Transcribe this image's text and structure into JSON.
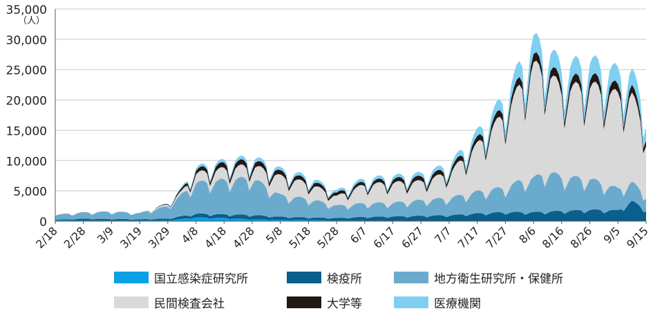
{
  "chart_data": {
    "type": "area",
    "stacked": true,
    "y_unit": "（人）",
    "ylim": [
      0,
      35000
    ],
    "y_ticks": [
      "0",
      "5,000",
      "10,000",
      "15,000",
      "20,000",
      "25,000",
      "30,000",
      "35,000"
    ],
    "x_ticks": [
      "2/18",
      "2/28",
      "3/9",
      "3/19",
      "3/29",
      "4/8",
      "4/18",
      "4/28",
      "5/8",
      "5/18",
      "5/28",
      "6/7",
      "6/17",
      "6/27",
      "7/7",
      "7/17",
      "7/27",
      "8/6",
      "8/16",
      "8/26",
      "9/5",
      "9/15"
    ],
    "grid": true,
    "legend_position": "bottom",
    "series": [
      {
        "name": "国立感染症研究所",
        "color": "#0aa0e6",
        "values": [
          [
            0,
            150
          ],
          [
            10,
            100
          ],
          [
            20,
            100
          ],
          [
            30,
            100
          ],
          [
            40,
            120
          ],
          [
            50,
            600
          ],
          [
            60,
            500
          ],
          [
            70,
            300
          ],
          [
            80,
            200
          ],
          [
            90,
            200
          ],
          [
            100,
            100
          ],
          [
            110,
            80
          ],
          [
            120,
            60
          ],
          [
            130,
            60
          ],
          [
            140,
            50
          ],
          [
            150,
            50
          ],
          [
            160,
            50
          ],
          [
            170,
            40
          ],
          [
            180,
            40
          ],
          [
            190,
            40
          ],
          [
            200,
            40
          ],
          [
            210,
            40
          ]
        ]
      },
      {
        "name": "検疫所",
        "color": "#0a5f8c",
        "values": [
          [
            0,
            100
          ],
          [
            10,
            300
          ],
          [
            20,
            250
          ],
          [
            30,
            200
          ],
          [
            40,
            300
          ],
          [
            50,
            600
          ],
          [
            60,
            600
          ],
          [
            70,
            700
          ],
          [
            80,
            500
          ],
          [
            90,
            400
          ],
          [
            100,
            400
          ],
          [
            110,
            600
          ],
          [
            120,
            700
          ],
          [
            130,
            800
          ],
          [
            140,
            900
          ],
          [
            150,
            1200
          ],
          [
            160,
            1400
          ],
          [
            170,
            1400
          ],
          [
            180,
            1600
          ],
          [
            190,
            1800
          ],
          [
            200,
            1700
          ],
          [
            205,
            3200
          ],
          [
            210,
            1800
          ]
        ]
      },
      {
        "name": "地方衛生研究所・保健所",
        "color": "#6aabcd",
        "values": [
          [
            0,
            800
          ],
          [
            10,
            1000
          ],
          [
            20,
            1200
          ],
          [
            30,
            1000
          ],
          [
            40,
            2000
          ],
          [
            45,
            3500
          ],
          [
            50,
            5000
          ],
          [
            60,
            5500
          ],
          [
            70,
            6000
          ],
          [
            80,
            3500
          ],
          [
            90,
            3000
          ],
          [
            100,
            2000
          ],
          [
            110,
            2200
          ],
          [
            120,
            2200
          ],
          [
            130,
            2500
          ],
          [
            140,
            2800
          ],
          [
            150,
            3500
          ],
          [
            160,
            4000
          ],
          [
            165,
            5000
          ],
          [
            170,
            5500
          ],
          [
            175,
            6500
          ],
          [
            180,
            5500
          ],
          [
            190,
            5000
          ],
          [
            200,
            3500
          ],
          [
            205,
            3000
          ],
          [
            210,
            2500
          ]
        ]
      },
      {
        "name": "民間検査会社",
        "color": "#d9d9d9",
        "values": [
          [
            0,
            0
          ],
          [
            10,
            0
          ],
          [
            20,
            0
          ],
          [
            30,
            0
          ],
          [
            40,
            300
          ],
          [
            45,
            500
          ],
          [
            50,
            1500
          ],
          [
            60,
            1800
          ],
          [
            70,
            2000
          ],
          [
            80,
            3000
          ],
          [
            90,
            2500
          ],
          [
            100,
            1500
          ],
          [
            110,
            3000
          ],
          [
            120,
            3200
          ],
          [
            130,
            3000
          ],
          [
            140,
            4000
          ],
          [
            150,
            7500
          ],
          [
            160,
            12000
          ],
          [
            165,
            15000
          ],
          [
            170,
            18000
          ],
          [
            175,
            16000
          ],
          [
            180,
            14000
          ],
          [
            190,
            15000
          ],
          [
            200,
            15000
          ],
          [
            205,
            14000
          ],
          [
            210,
            10000
          ]
        ]
      },
      {
        "name": "大学等",
        "color": "#231815",
        "values": [
          [
            0,
            0
          ],
          [
            10,
            0
          ],
          [
            20,
            0
          ],
          [
            30,
            0
          ],
          [
            40,
            100
          ],
          [
            50,
            600
          ],
          [
            60,
            800
          ],
          [
            70,
            800
          ],
          [
            80,
            700
          ],
          [
            90,
            600
          ],
          [
            100,
            500
          ],
          [
            110,
            500
          ],
          [
            120,
            600
          ],
          [
            130,
            700
          ],
          [
            140,
            700
          ],
          [
            150,
            900
          ],
          [
            160,
            1100
          ],
          [
            170,
            1300
          ],
          [
            180,
            1300
          ],
          [
            190,
            1300
          ],
          [
            200,
            1300
          ],
          [
            210,
            1100
          ]
        ]
      },
      {
        "name": "医療機関",
        "color": "#7fcff2",
        "values": [
          [
            0,
            0
          ],
          [
            10,
            0
          ],
          [
            20,
            0
          ],
          [
            30,
            0
          ],
          [
            40,
            100
          ],
          [
            50,
            400
          ],
          [
            60,
            500
          ],
          [
            70,
            600
          ],
          [
            80,
            500
          ],
          [
            90,
            500
          ],
          [
            100,
            400
          ],
          [
            110,
            500
          ],
          [
            120,
            500
          ],
          [
            130,
            600
          ],
          [
            140,
            700
          ],
          [
            150,
            1200
          ],
          [
            160,
            1800
          ],
          [
            165,
            2500
          ],
          [
            170,
            3000
          ],
          [
            180,
            2600
          ],
          [
            190,
            2800
          ],
          [
            200,
            2700
          ],
          [
            210,
            2500
          ]
        ]
      }
    ]
  }
}
